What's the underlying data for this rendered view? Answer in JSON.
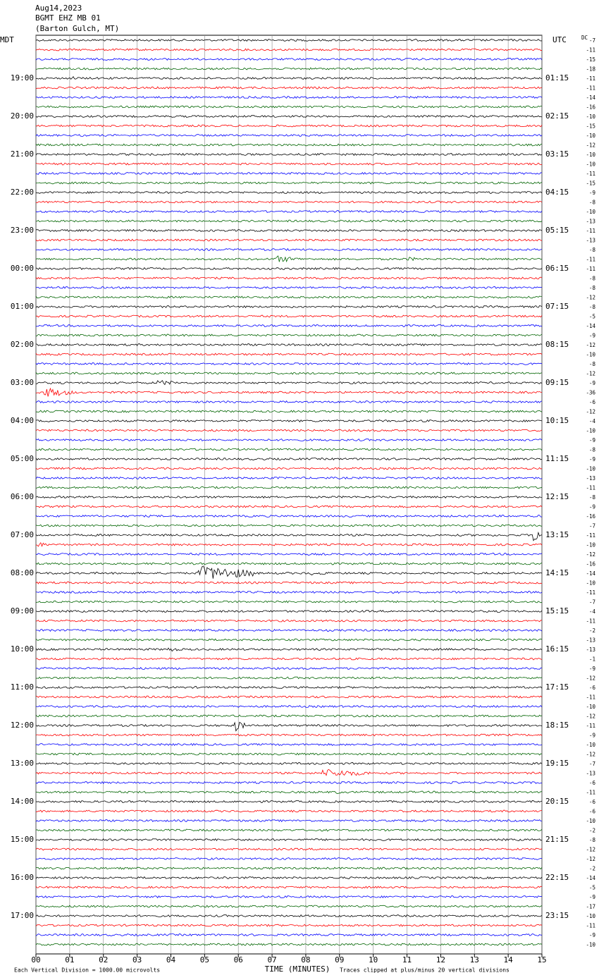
{
  "header": {
    "date": "Aug14,2023",
    "station": "BGMT EHZ MB 01",
    "location": "(Barton Gulch, MT)",
    "left_zone": "MDT",
    "right_zone": "UTC",
    "dc_label": "DC"
  },
  "left_labels": [
    "19:00",
    "20:00",
    "21:00",
    "22:00",
    "23:00",
    "00:00",
    "01:00",
    "02:00",
    "03:00",
    "04:00",
    "05:00",
    "06:00",
    "07:00",
    "08:00",
    "09:00",
    "10:00",
    "11:00",
    "12:00",
    "13:00",
    "14:00",
    "15:00",
    "16:00",
    "17:00"
  ],
  "right_labels": [
    "01:15",
    "02:15",
    "03:15",
    "04:15",
    "05:15",
    "06:15",
    "07:15",
    "08:15",
    "09:15",
    "10:15",
    "11:15",
    "12:15",
    "13:15",
    "14:15",
    "15:15",
    "16:15",
    "17:15",
    "18:15",
    "19:15",
    "20:15",
    "21:15",
    "22:15",
    "23:15"
  ],
  "dc_offsets": [
    -7,
    -11,
    -15,
    -18,
    -11,
    -11,
    -14,
    -16,
    -10,
    -15,
    -10,
    -12,
    -10,
    -10,
    -11,
    -15,
    -9,
    -8,
    -10,
    -13,
    -11,
    -13,
    -8,
    -11,
    -11,
    -8,
    -8,
    -12,
    -8,
    -5,
    -14,
    -9,
    -12,
    -10,
    -8,
    -12,
    -9,
    -36,
    -6,
    -12,
    -4,
    -10,
    -9,
    -8,
    -9,
    -10,
    -13,
    -11,
    -8,
    -9,
    -16,
    -7,
    -11,
    -10,
    -12,
    -16,
    -14,
    -10,
    -11,
    -7,
    -4,
    -11,
    -2,
    -13,
    -13,
    -1,
    -9,
    -12,
    -6,
    -11,
    -10,
    -12,
    -11,
    -9,
    -10,
    -12,
    -7,
    -13,
    -6,
    -11,
    -6,
    -6,
    -10,
    -2,
    -8,
    -12,
    -12,
    -2,
    -14,
    -5,
    -9,
    -17,
    -10,
    -11,
    -9,
    -10
  ],
  "trace_colors": [
    "#000000",
    "#ff0000",
    "#0000ff",
    "#006400"
  ],
  "x_axis": {
    "label": "TIME (MINUTES)",
    "xlim": [
      0,
      15
    ],
    "ticks": [
      {
        "value": 0,
        "label": "00"
      },
      {
        "value": 1,
        "label": "01"
      },
      {
        "value": 2,
        "label": "02"
      },
      {
        "value": 3,
        "label": "03"
      },
      {
        "value": 4,
        "label": "04"
      },
      {
        "value": 5,
        "label": "05"
      },
      {
        "value": 6,
        "label": "06"
      },
      {
        "value": 7,
        "label": "07"
      },
      {
        "value": 8,
        "label": "08"
      },
      {
        "value": 9,
        "label": "09"
      },
      {
        "value": 10,
        "label": "10"
      },
      {
        "value": 11,
        "label": "11"
      },
      {
        "value": 12,
        "label": "12"
      },
      {
        "value": 13,
        "label": "13"
      },
      {
        "value": 14,
        "label": "14"
      },
      {
        "value": 15,
        "label": "15"
      }
    ]
  },
  "footer": {
    "scale": "Each Vertical Division = 1000.00 microvolts",
    "clip": "Traces clipped at plus/minus 20 vertical divisions"
  }
}
